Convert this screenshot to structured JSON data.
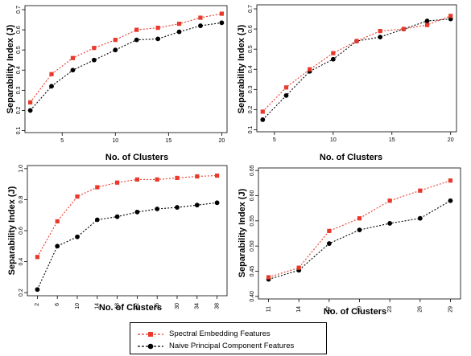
{
  "colors": {
    "spectral": "#e8392b",
    "naive": "#000000"
  },
  "legend": {
    "placement": "bottom-center",
    "entries": [
      {
        "label": "Spectral Embedding Features",
        "color": "#e8392b",
        "marker": "square"
      },
      {
        "label": "Naive Principal Component Features",
        "color": "#000000",
        "marker": "circle"
      }
    ]
  },
  "chart_data": [
    {
      "type": "line",
      "xlabel": "No. of Clusters",
      "ylabel": "Separability Index (J)",
      "x": [
        2,
        4,
        6,
        8,
        10,
        12,
        14,
        16,
        18,
        20
      ],
      "xticks": [
        5,
        10,
        15,
        20
      ],
      "xlim": [
        1.5,
        20.5
      ],
      "ylim": [
        0.09,
        0.72
      ],
      "yticks": [
        0.1,
        0.2,
        0.3,
        0.4,
        0.5,
        0.6,
        0.7
      ],
      "series": [
        {
          "name": "Spectral Embedding Features",
          "values": [
            0.24,
            0.38,
            0.46,
            0.51,
            0.55,
            0.6,
            0.61,
            0.63,
            0.66,
            0.68
          ]
        },
        {
          "name": "Naive Principal Component Features",
          "values": [
            0.2,
            0.32,
            0.4,
            0.45,
            0.5,
            0.55,
            0.555,
            0.59,
            0.62,
            0.635
          ]
        }
      ]
    },
    {
      "type": "line",
      "xlabel": "No. of Clusters",
      "ylabel": "Separability Index (J)",
      "x": [
        4,
        6,
        8,
        10,
        12,
        14,
        16,
        18,
        20
      ],
      "xticks": [
        5,
        10,
        15,
        20
      ],
      "xlim": [
        3.5,
        20.5
      ],
      "ylim": [
        0.09,
        0.72
      ],
      "yticks": [
        0.1,
        0.2,
        0.3,
        0.4,
        0.5,
        0.6,
        0.7
      ],
      "series": [
        {
          "name": "Spectral Embedding Features",
          "values": [
            0.19,
            0.31,
            0.4,
            0.48,
            0.54,
            0.59,
            0.6,
            0.62,
            0.665
          ]
        },
        {
          "name": "Naive Principal Component Features",
          "values": [
            0.15,
            0.27,
            0.39,
            0.45,
            0.54,
            0.56,
            0.6,
            0.64,
            0.65
          ]
        }
      ]
    },
    {
      "type": "line",
      "xlabel": "No. of Clusters",
      "ylabel": "Separability Index (J)",
      "x": [
        2,
        6,
        10,
        14,
        18,
        22,
        26,
        30,
        34,
        38
      ],
      "xticks": [
        2,
        6,
        10,
        14,
        18,
        22,
        26,
        30,
        34,
        38
      ],
      "xlim": [
        0,
        40
      ],
      "ylim": [
        0.18,
        1.02
      ],
      "yticks": [
        0.2,
        0.4,
        0.6,
        0.8,
        1.0
      ],
      "ytick_labels": [
        "0.2",
        "0.4",
        "0.6",
        "0.8",
        "1.0"
      ],
      "series": [
        {
          "name": "Spectral Embedding Features",
          "values": [
            0.43,
            0.66,
            0.82,
            0.88,
            0.91,
            0.93,
            0.93,
            0.94,
            0.95,
            0.955
          ]
        },
        {
          "name": "Naive Principal Component Features",
          "values": [
            0.22,
            0.5,
            0.56,
            0.67,
            0.69,
            0.72,
            0.74,
            0.75,
            0.765,
            0.78
          ]
        }
      ]
    },
    {
      "type": "line",
      "xlabel": "No. of Clusters",
      "ylabel": "Separability Index (J)",
      "x": [
        11,
        14,
        17,
        20,
        23,
        26,
        29
      ],
      "xticks": [
        11,
        14,
        17,
        20,
        23,
        26,
        29
      ],
      "xlim": [
        10,
        30
      ],
      "ylim": [
        0.395,
        0.655
      ],
      "yticks": [
        0.4,
        0.45,
        0.5,
        0.55,
        0.6,
        0.65
      ],
      "ytick_labels": [
        "0.40",
        "0.45",
        "0.50",
        "0.55",
        "0.60",
        "0.65"
      ],
      "series": [
        {
          "name": "Spectral Embedding Features",
          "values": [
            0.438,
            0.457,
            0.53,
            0.555,
            0.59,
            0.61,
            0.63
          ]
        },
        {
          "name": "Naive Principal Component Features",
          "values": [
            0.434,
            0.452,
            0.505,
            0.532,
            0.545,
            0.555,
            0.59
          ]
        }
      ]
    }
  ]
}
